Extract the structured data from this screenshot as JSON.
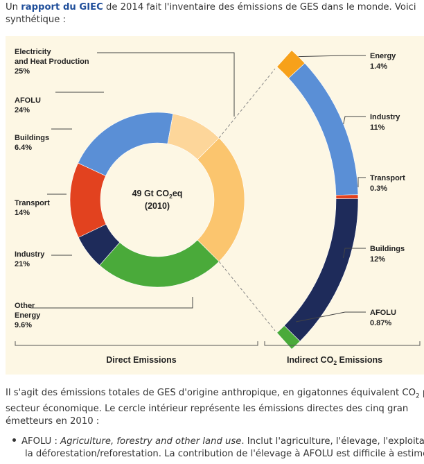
{
  "intro": {
    "before": "Un ",
    "link": "rapport du GIEC",
    "after": " de 2014 fait l'inventaire des émissions de GES dans le monde. Voici",
    "line2": "synthétique :"
  },
  "chart_data": {
    "type": "pie",
    "center": {
      "line1_a": "49 Gt CO",
      "line1_sub": "2",
      "line1_b": "eq",
      "line2": "(2010)"
    },
    "direct": {
      "footer": "Direct Emissions",
      "slices": [
        {
          "name": "Electricity and Heat Production",
          "lines": [
            "Electricity",
            "and Heat Production"
          ],
          "pct_label": "25%",
          "value": 25,
          "color": "#fbc56e"
        },
        {
          "name": "AFOLU",
          "lines": [
            "AFOLU"
          ],
          "pct_label": "24%",
          "value": 24,
          "color": "#4aaa3a"
        },
        {
          "name": "Buildings",
          "lines": [
            "Buildings"
          ],
          "pct_label": "6.4%",
          "value": 6.4,
          "color": "#1e2b5a"
        },
        {
          "name": "Transport",
          "lines": [
            "Transport"
          ],
          "pct_label": "14%",
          "value": 14,
          "color": "#e2421f"
        },
        {
          "name": "Industry",
          "lines": [
            "Industry"
          ],
          "pct_label": "21%",
          "value": 21,
          "color": "#5a8fd6"
        },
        {
          "name": "Other Energy",
          "lines": [
            "Other",
            "Energy"
          ],
          "pct_label": "9.6%",
          "value": 9.6,
          "color": "#fdd69a"
        }
      ]
    },
    "indirect": {
      "footer_a": "Indirect CO",
      "footer_sub": "2",
      "footer_b": " Emissions",
      "segments": [
        {
          "name": "Energy",
          "pct_label": "1.4%",
          "value": 1.4,
          "color": "#f7a11a"
        },
        {
          "name": "Industry",
          "pct_label": "11%",
          "value": 11,
          "color": "#5a8fd6"
        },
        {
          "name": "Transport",
          "pct_label": "0.3%",
          "value": 0.3,
          "color": "#e2421f"
        },
        {
          "name": "Buildings",
          "pct_label": "12%",
          "value": 12,
          "color": "#1e2b5a"
        },
        {
          "name": "AFOLU",
          "pct_label": "0.87%",
          "value": 0.87,
          "color": "#4aaa3a"
        }
      ]
    }
  },
  "para": {
    "line1_a": "Il s'agit des émissions totales de GES d'origine anthropique, en gigatonnes équivalent CO",
    "line1_sub": "2",
    "line1_b": " p",
    "line2": "secteur économique. Le cercle intérieur représente les émissions directes des cinq gran",
    "line3": "émetteurs en 2010 :"
  },
  "bullet": {
    "term": "AFOLU : ",
    "term_italic": "Agriculture, forestry and other land use",
    "rest": ". Inclut l'agriculture, l'élevage, l'exploitation",
    "line2": "la déforestation/reforestation. La contribution de l'élevage à AFOLU est difficile à estimer"
  }
}
